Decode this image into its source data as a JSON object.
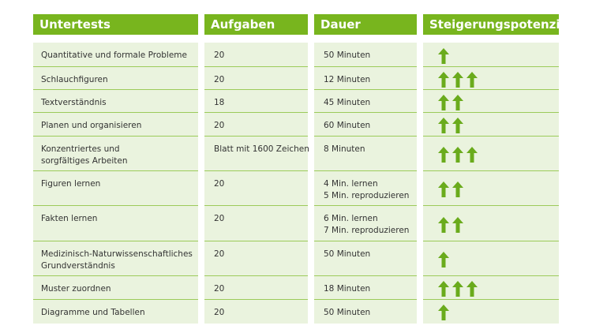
{
  "table": {
    "header": [
      "Untertests",
      "Aufgaben",
      "Dauer",
      "Steigerungspotenzial"
    ],
    "rows": [
      {
        "test": [
          "Quantitative und formale Probleme"
        ],
        "tasks": 20,
        "duration": [
          "50 Minuten"
        ],
        "potential": 1
      },
      {
        "test": [
          "Schlauchfiguren"
        ],
        "tasks": 20,
        "duration": [
          "12 Minuten"
        ],
        "potential": 3
      },
      {
        "test": [
          "Textverständnis"
        ],
        "tasks": 18,
        "duration": [
          "45 Minuten"
        ],
        "potential": 2
      },
      {
        "test": [
          "Planen und organisieren"
        ],
        "tasks": 20,
        "duration": [
          "60 Minuten"
        ],
        "potential": 2
      },
      {
        "test": [
          "Konzentriertes und",
          "sorgfältiges Arbeiten"
        ],
        "tasks": "Blatt mit 1600 Zeichen",
        "duration": [
          "8 Minuten"
        ],
        "potential": 3
      },
      {
        "test": [
          "Figuren lernen"
        ],
        "tasks": 20,
        "duration": [
          "4 Min. lernen",
          "5 Min. reproduzieren"
        ],
        "potential": 2
      },
      {
        "test": [
          "Fakten lernen"
        ],
        "tasks": 20,
        "duration": [
          "6 Min. lernen",
          "7 Min. reproduzieren"
        ],
        "potential": 2
      },
      {
        "test": [
          "Medizinisch-Naturwissenschaftliches",
          "Grundverständnis"
        ],
        "tasks": 20,
        "duration": [
          "50 Minuten"
        ],
        "potential": 1
      },
      {
        "test": [
          "Muster zuordnen"
        ],
        "tasks": 20,
        "duration": [
          "18 Minuten"
        ],
        "potential": 3
      },
      {
        "test": [
          "Diagramme und Tabellen"
        ],
        "tasks": 20,
        "duration": [
          "50 Minuten"
        ],
        "potential": 1
      }
    ]
  }
}
